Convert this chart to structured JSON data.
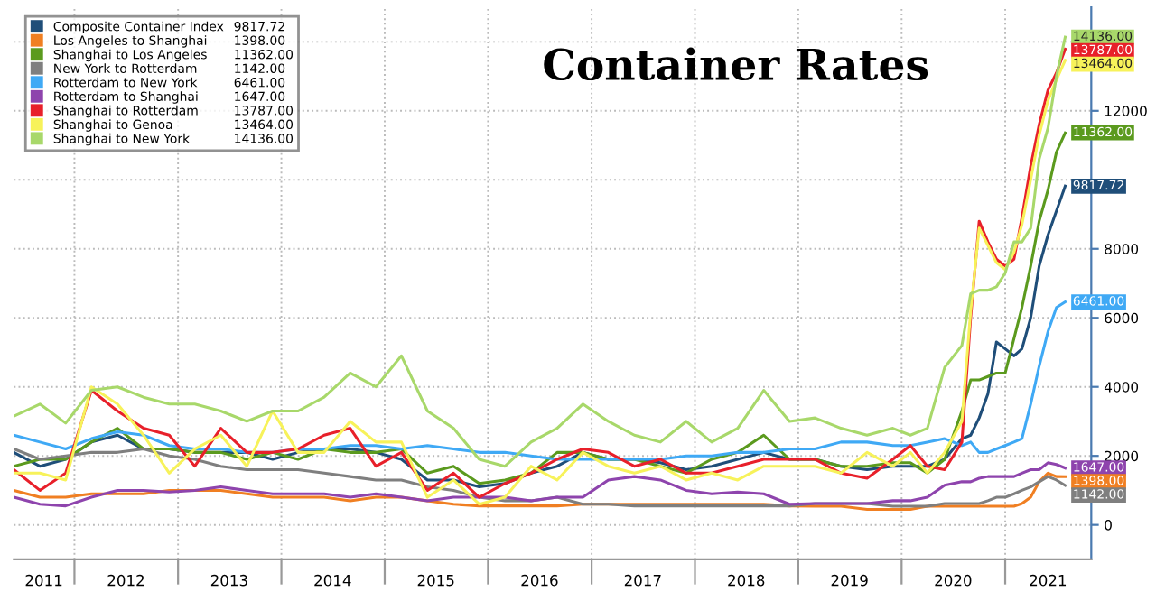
{
  "chart_data": {
    "type": "line",
    "title": "Container Rates",
    "x": [
      "2011-06",
      "2011-09",
      "2011-12",
      "2012-03",
      "2012-06",
      "2012-09",
      "2012-12",
      "2013-03",
      "2013-06",
      "2013-09",
      "2013-12",
      "2014-03",
      "2014-06",
      "2014-09",
      "2014-12",
      "2015-03",
      "2015-06",
      "2015-09",
      "2015-12",
      "2016-03",
      "2016-06",
      "2016-09",
      "2016-12",
      "2017-03",
      "2017-06",
      "2017-09",
      "2017-12",
      "2018-03",
      "2018-06",
      "2018-09",
      "2018-12",
      "2019-03",
      "2019-06",
      "2019-09",
      "2019-12",
      "2020-02",
      "2020-04",
      "2020-06",
      "2020-08",
      "2020-09",
      "2020-10",
      "2020-11",
      "2020-12",
      "2021-01",
      "2021-02",
      "2021-03",
      "2021-04",
      "2021-05",
      "2021-06",
      "2021-07",
      "2021-08"
    ],
    "series": [
      {
        "name": "Composite Container Index",
        "color": "#1f4e79",
        "values": [
          2100,
          1700,
          1900,
          2400,
          2600,
          2200,
          2200,
          2100,
          2100,
          2100,
          1900,
          2100,
          2200,
          2200,
          2100,
          1900,
          1300,
          1300,
          1100,
          1200,
          1500,
          1700,
          2100,
          1900,
          1900,
          1800,
          1600,
          1700,
          1900,
          2100,
          1900,
          1900,
          1700,
          1600,
          1700,
          1700,
          1700,
          1900,
          2500,
          2600,
          3100,
          3800,
          5300,
          5100,
          4900,
          5100,
          6000,
          7500,
          8400,
          9100,
          9817.72
        ],
        "value_labels": [
          null,
          null,
          null,
          null,
          null,
          null,
          null,
          null,
          null,
          null,
          null,
          null,
          null,
          null,
          null,
          null,
          null,
          null,
          null,
          null,
          null,
          null,
          null,
          null,
          null,
          null,
          null,
          null,
          null,
          null,
          null,
          null,
          null,
          null,
          null,
          null,
          null,
          null,
          null,
          null,
          null,
          null,
          null,
          null,
          null,
          null,
          null,
          null,
          null,
          null,
          "9817.72"
        ]
      },
      {
        "name": "Los Angeles to Shanghai",
        "color": "#f07f22",
        "values": [
          1000,
          800,
          800,
          900,
          900,
          900,
          1000,
          1000,
          1000,
          900,
          800,
          800,
          800,
          700,
          800,
          800,
          700,
          600,
          550,
          550,
          550,
          550,
          600,
          600,
          600,
          600,
          600,
          600,
          600,
          600,
          550,
          540,
          540,
          450,
          450,
          450,
          540,
          540,
          540,
          540,
          540,
          540,
          540,
          540,
          540,
          620,
          800,
          1250,
          1500,
          1400,
          1398
        ],
        "value_labels": [
          null,
          null,
          null,
          null,
          null,
          null,
          null,
          null,
          null,
          null,
          null,
          null,
          null,
          null,
          null,
          null,
          null,
          null,
          null,
          null,
          null,
          null,
          null,
          null,
          null,
          null,
          null,
          null,
          null,
          null,
          null,
          null,
          null,
          null,
          null,
          null,
          null,
          null,
          null,
          null,
          null,
          null,
          null,
          null,
          null,
          null,
          null,
          null,
          null,
          null,
          "1398.00"
        ]
      },
      {
        "name": "Shanghai to Los Angeles",
        "color": "#5b9a1e",
        "values": [
          1700,
          1900,
          1900,
          2400,
          2800,
          2200,
          2200,
          2100,
          2100,
          1900,
          2100,
          1900,
          2200,
          2100,
          2100,
          2200,
          1500,
          1700,
          1200,
          1300,
          1500,
          2100,
          2100,
          1900,
          1900,
          1700,
          1500,
          1900,
          2100,
          2600,
          1900,
          1900,
          1700,
          1700,
          1800,
          1800,
          1500,
          1900,
          3300,
          4200,
          4200,
          4300,
          4400,
          4400,
          5400,
          6300,
          7500,
          8800,
          9700,
          10800,
          11362
        ],
        "value_labels": [
          null,
          null,
          null,
          null,
          null,
          null,
          null,
          null,
          null,
          null,
          null,
          null,
          null,
          null,
          null,
          null,
          null,
          null,
          null,
          null,
          null,
          null,
          null,
          null,
          null,
          null,
          null,
          null,
          null,
          null,
          null,
          null,
          null,
          null,
          null,
          null,
          null,
          null,
          null,
          null,
          null,
          null,
          null,
          null,
          null,
          null,
          null,
          null,
          null,
          null,
          "11362.00"
        ]
      },
      {
        "name": "New York to Rotterdam",
        "color": "#7f7f7f",
        "values": [
          2200,
          1900,
          2000,
          2100,
          2100,
          2200,
          2000,
          1900,
          1700,
          1600,
          1600,
          1600,
          1500,
          1400,
          1300,
          1300,
          1100,
          1000,
          800,
          700,
          700,
          800,
          600,
          600,
          550,
          550,
          550,
          550,
          550,
          550,
          550,
          620,
          620,
          620,
          540,
          540,
          540,
          620,
          620,
          620,
          620,
          700,
          800,
          800,
          900,
          1000,
          1100,
          1250,
          1400,
          1300,
          1142
        ],
        "value_labels": [
          null,
          null,
          null,
          null,
          null,
          null,
          null,
          null,
          null,
          null,
          null,
          null,
          null,
          null,
          null,
          null,
          null,
          null,
          null,
          null,
          null,
          null,
          null,
          null,
          null,
          null,
          null,
          null,
          null,
          null,
          null,
          null,
          null,
          null,
          null,
          null,
          null,
          null,
          null,
          null,
          null,
          null,
          null,
          null,
          null,
          null,
          null,
          null,
          null,
          null,
          "1142.00"
        ]
      },
      {
        "name": "Rotterdam to New York",
        "color": "#3fa9f5",
        "values": [
          2600,
          2400,
          2200,
          2500,
          2700,
          2600,
          2300,
          2200,
          2200,
          2100,
          2100,
          2200,
          2200,
          2300,
          2300,
          2200,
          2300,
          2200,
          2100,
          2100,
          2000,
          1900,
          1900,
          1900,
          1900,
          1900,
          2000,
          2000,
          2100,
          2100,
          2200,
          2200,
          2400,
          2400,
          2300,
          2300,
          2400,
          2500,
          2300,
          2400,
          2100,
          2100,
          2200,
          2300,
          2400,
          2500,
          3500,
          4600,
          5600,
          6300,
          6461
        ],
        "value_labels": [
          null,
          null,
          null,
          null,
          null,
          null,
          null,
          null,
          null,
          null,
          null,
          null,
          null,
          null,
          null,
          null,
          null,
          null,
          null,
          null,
          null,
          null,
          null,
          null,
          null,
          null,
          null,
          null,
          null,
          null,
          null,
          null,
          null,
          null,
          null,
          null,
          null,
          null,
          null,
          null,
          null,
          null,
          null,
          null,
          null,
          null,
          null,
          null,
          null,
          null,
          "6461.00"
        ]
      },
      {
        "name": "Rotterdam to Shanghai",
        "color": "#8e44ad",
        "values": [
          800,
          600,
          550,
          800,
          1000,
          1000,
          950,
          1000,
          1100,
          1000,
          900,
          900,
          900,
          800,
          900,
          800,
          700,
          800,
          800,
          800,
          700,
          800,
          800,
          1300,
          1400,
          1300,
          1000,
          900,
          950,
          900,
          600,
          620,
          620,
          620,
          700,
          700,
          800,
          1150,
          1250,
          1250,
          1350,
          1400,
          1400,
          1400,
          1400,
          1500,
          1600,
          1600,
          1800,
          1750,
          1647
        ],
        "value_labels": [
          null,
          null,
          null,
          null,
          null,
          null,
          null,
          null,
          null,
          null,
          null,
          null,
          null,
          null,
          null,
          null,
          null,
          null,
          null,
          null,
          null,
          null,
          null,
          null,
          null,
          null,
          null,
          null,
          null,
          null,
          null,
          null,
          null,
          null,
          null,
          null,
          null,
          null,
          null,
          null,
          null,
          null,
          null,
          null,
          null,
          null,
          null,
          null,
          null,
          null,
          "1647.00"
        ]
      },
      {
        "name": "Shanghai to Rotterdam",
        "color": "#e8202a",
        "values": [
          1600,
          1000,
          1500,
          3900,
          3300,
          2800,
          2600,
          1700,
          2800,
          2100,
          2100,
          2200,
          2600,
          2800,
          1700,
          2100,
          1000,
          1500,
          800,
          1200,
          1500,
          1900,
          2200,
          2100,
          1700,
          1900,
          1500,
          1500,
          1700,
          1900,
          1900,
          1900,
          1500,
          1350,
          1900,
          2300,
          1700,
          1600,
          2400,
          6000,
          8800,
          8200,
          7700,
          7500,
          7700,
          8900,
          10400,
          11600,
          12600,
          13100,
          13787
        ],
        "value_labels": [
          null,
          null,
          null,
          null,
          null,
          null,
          null,
          null,
          null,
          null,
          null,
          null,
          null,
          null,
          null,
          null,
          null,
          null,
          null,
          null,
          null,
          null,
          null,
          null,
          null,
          null,
          null,
          null,
          null,
          null,
          null,
          null,
          null,
          null,
          null,
          null,
          null,
          null,
          null,
          null,
          null,
          null,
          null,
          null,
          null,
          null,
          null,
          null,
          null,
          null,
          "13787.00"
        ]
      },
      {
        "name": "Shanghai to Genoa",
        "color": "#f7f25a",
        "values": [
          1500,
          1500,
          1300,
          4000,
          3500,
          2600,
          1500,
          2200,
          2600,
          1700,
          3300,
          2100,
          2100,
          3000,
          2400,
          2400,
          800,
          1300,
          600,
          800,
          1700,
          1300,
          2100,
          1700,
          1500,
          1700,
          1300,
          1500,
          1300,
          1700,
          1700,
          1700,
          1500,
          2100,
          1700,
          2100,
          1500,
          2100,
          3000,
          6200,
          8600,
          8100,
          7600,
          7400,
          7900,
          8700,
          10000,
          11300,
          12300,
          12900,
          13464
        ],
        "value_labels": [
          null,
          null,
          null,
          null,
          null,
          null,
          null,
          null,
          null,
          null,
          null,
          null,
          null,
          null,
          null,
          null,
          null,
          null,
          null,
          null,
          null,
          null,
          null,
          null,
          null,
          null,
          null,
          null,
          null,
          null,
          null,
          null,
          null,
          null,
          null,
          null,
          null,
          null,
          null,
          null,
          null,
          null,
          null,
          null,
          null,
          null,
          null,
          null,
          null,
          null,
          "13464.00"
        ]
      },
      {
        "name": "Shanghai to New York",
        "color": "#a8d86a",
        "values": [
          3150,
          3500,
          2950,
          3900,
          4000,
          3700,
          3500,
          3500,
          3300,
          3000,
          3300,
          3300,
          3700,
          4400,
          4000,
          4900,
          3300,
          2800,
          1900,
          1700,
          2400,
          2800,
          3500,
          3000,
          2600,
          2400,
          3000,
          2400,
          2800,
          3900,
          3000,
          3100,
          2800,
          2600,
          2800,
          2600,
          2800,
          4560,
          5200,
          6700,
          6800,
          6800,
          6900,
          7300,
          8200,
          8200,
          8600,
          10600,
          11500,
          13000,
          14136
        ],
        "value_labels": [
          null,
          null,
          null,
          null,
          null,
          null,
          null,
          null,
          null,
          null,
          null,
          null,
          null,
          null,
          null,
          null,
          null,
          null,
          null,
          null,
          null,
          null,
          null,
          null,
          null,
          null,
          null,
          null,
          null,
          null,
          null,
          null,
          null,
          null,
          null,
          null,
          null,
          null,
          null,
          null,
          null,
          null,
          null,
          null,
          null,
          null,
          null,
          null,
          null,
          null,
          "14136.00"
        ]
      }
    ],
    "xlim": [
      "2011-06-01",
      "2021-11-01"
    ],
    "xticks": [
      {
        "value": "2012-01-01",
        "label": null
      },
      {
        "value": "2013-01-01",
        "label": null
      },
      {
        "value": "2014-01-01",
        "label": null
      },
      {
        "value": "2015-01-01",
        "label": null
      },
      {
        "value": "2016-01-01",
        "label": null
      },
      {
        "value": "2017-01-01",
        "label": null
      },
      {
        "value": "2018-01-01",
        "label": null
      },
      {
        "value": "2019-01-01",
        "label": null
      },
      {
        "value": "2020-01-01",
        "label": null
      },
      {
        "value": "2021-01-01",
        "label": null
      },
      {
        "value": "2011-09-15",
        "label": "2011"
      },
      {
        "value": "2012-07-01",
        "label": "2012"
      },
      {
        "value": "2013-07-01",
        "label": "2013"
      },
      {
        "value": "2014-07-01",
        "label": "2014"
      },
      {
        "value": "2015-07-01",
        "label": "2015"
      },
      {
        "value": "2016-07-01",
        "label": "2016"
      },
      {
        "value": "2017-07-01",
        "label": "2017"
      },
      {
        "value": "2018-07-01",
        "label": "2018"
      },
      {
        "value": "2019-07-01",
        "label": "2019"
      },
      {
        "value": "2020-07-01",
        "label": "2020"
      },
      {
        "value": "2021-06-01",
        "label": "2021"
      }
    ],
    "ylim": [
      -1000,
      15000
    ],
    "yticks": [
      0,
      2000,
      4000,
      6000,
      8000,
      {
        "value": 10000,
        "label": null
      },
      12000,
      {
        "value": 14000,
        "label": null
      }
    ],
    "grid": true,
    "legend": "top left"
  }
}
